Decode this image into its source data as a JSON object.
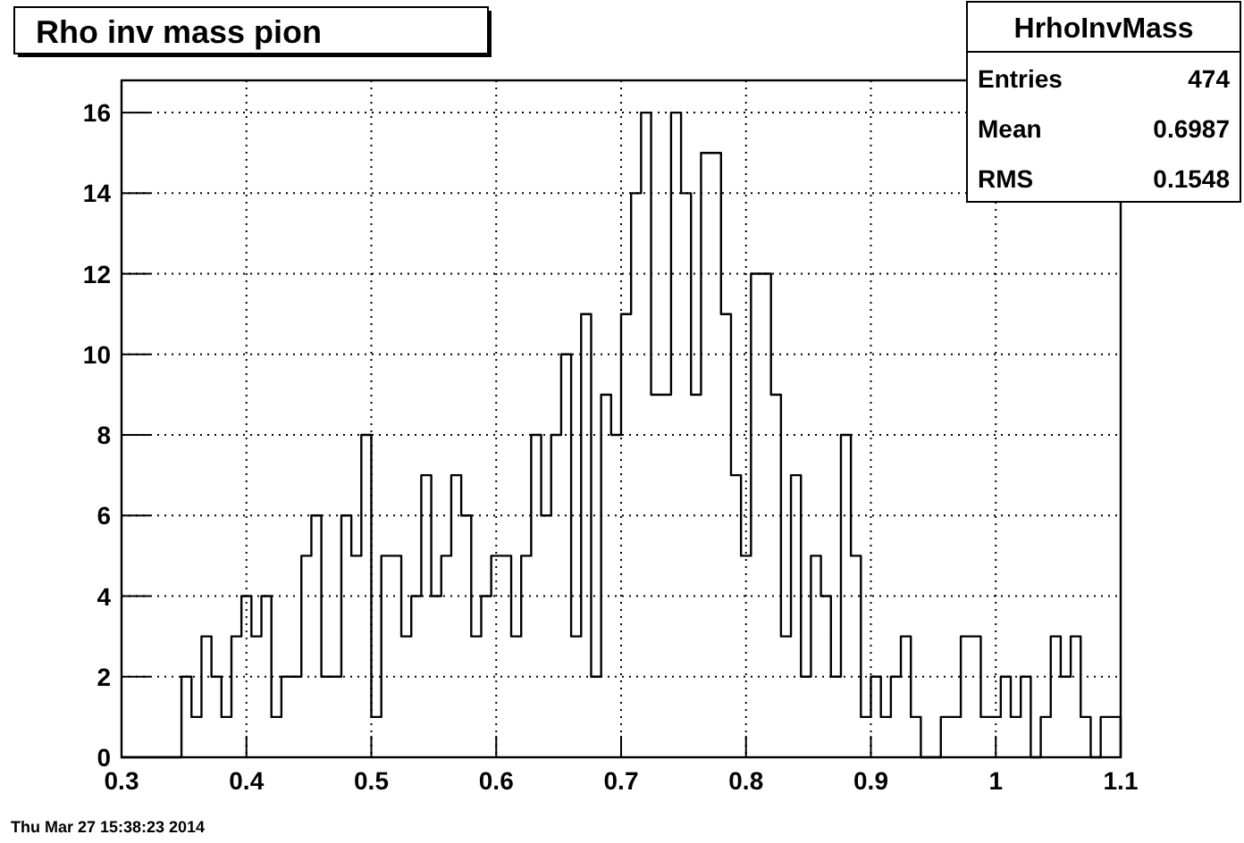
{
  "chart_data": {
    "type": "histogram",
    "title": "Rho inv mass pion",
    "bins": [
      0.3,
      0.308,
      0.316,
      0.324,
      0.332,
      0.34,
      0.348,
      0.356,
      0.364,
      0.372,
      0.38,
      0.388,
      0.396,
      0.404,
      0.412,
      0.42,
      0.428,
      0.436,
      0.444,
      0.452,
      0.46,
      0.468,
      0.476,
      0.484,
      0.492,
      0.5,
      0.508,
      0.516,
      0.524,
      0.532,
      0.54,
      0.548,
      0.556,
      0.564,
      0.572,
      0.58,
      0.588,
      0.596,
      0.604,
      0.612,
      0.62,
      0.628,
      0.636,
      0.644,
      0.652,
      0.66,
      0.668,
      0.676,
      0.684,
      0.692,
      0.7,
      0.708,
      0.716,
      0.724,
      0.732,
      0.74,
      0.748,
      0.756,
      0.764,
      0.772,
      0.78,
      0.788,
      0.796,
      0.804,
      0.812,
      0.82,
      0.828,
      0.836,
      0.844,
      0.852,
      0.86,
      0.868,
      0.876,
      0.884,
      0.892,
      0.9,
      0.908,
      0.916,
      0.924,
      0.932,
      0.94,
      0.948,
      0.956,
      0.964,
      0.972,
      0.98,
      0.988,
      0.996,
      1.004,
      1.012,
      1.02,
      1.028,
      1.036,
      1.044,
      1.052,
      1.06,
      1.068,
      1.076,
      1.084,
      1.092,
      1.1
    ],
    "values": [
      0,
      0,
      0,
      0,
      0,
      0,
      2,
      1,
      3,
      2,
      1,
      3,
      4,
      3,
      4,
      1,
      2,
      2,
      5,
      6,
      2,
      2,
      6,
      5,
      8,
      1,
      5,
      5,
      3,
      4,
      7,
      4,
      5,
      7,
      6,
      3,
      4,
      5,
      5,
      3,
      5,
      8,
      6,
      8,
      10,
      3,
      11,
      2,
      9,
      8,
      11,
      14,
      16,
      9,
      9,
      16,
      14,
      9,
      15,
      15,
      11,
      7,
      5,
      12,
      12,
      9,
      3,
      7,
      2,
      5,
      4,
      2,
      8,
      5,
      1,
      2,
      1,
      2,
      3,
      1,
      0,
      0,
      1,
      1,
      3,
      3,
      1,
      1,
      2,
      1,
      2,
      0,
      1,
      3,
      2,
      3,
      1,
      0,
      1,
      1
    ],
    "color": "#000000",
    "xlim": [
      0.3,
      1.1
    ],
    "xticks": [
      0.3,
      0.4,
      0.5,
      0.6,
      0.7,
      0.8,
      0.9,
      {
        "value": 1,
        "label": "1"
      },
      1.1
    ],
    "ylim": [
      0,
      16.8
    ],
    "yticks": [
      0,
      2,
      4,
      6,
      8,
      10,
      12,
      14,
      16
    ],
    "grid": true,
    "annotations": [
      "HrhoInvMass",
      "Entries",
      "474",
      "Mean",
      "0.6987",
      "RMS",
      "0.1548",
      "Thu Mar 27 15:38:23 2014"
    ]
  }
}
